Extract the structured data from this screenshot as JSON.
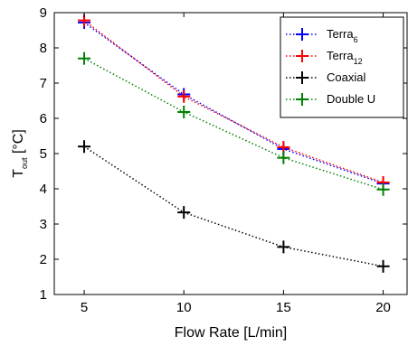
{
  "chart_data": {
    "type": "line",
    "xlabel": "Flow Rate [L/min]",
    "ylabel": {
      "main": "T",
      "sub": "out",
      "rest": " [°C]"
    },
    "x": [
      5,
      10,
      15,
      20
    ],
    "xlim": [
      3.5,
      21.2
    ],
    "ylim": [
      1,
      9
    ],
    "xticks": [
      5,
      10,
      15,
      20
    ],
    "yticks": [
      1,
      2,
      3,
      4,
      5,
      6,
      7,
      8,
      9
    ],
    "grid": false,
    "legend_position": "top-right",
    "series": [
      {
        "label": {
          "main": "Terra",
          "sub": "6"
        },
        "color": "#0000ff",
        "values": [
          8.72,
          6.68,
          5.13,
          4.15
        ]
      },
      {
        "label": {
          "main": "Terra",
          "sub": "12"
        },
        "color": "#ff0000",
        "values": [
          8.78,
          6.62,
          5.18,
          4.18
        ]
      },
      {
        "label": {
          "main": "Coaxial",
          "sub": ""
        },
        "color": "#000000",
        "values": [
          5.2,
          3.33,
          2.35,
          1.8
        ]
      },
      {
        "label": {
          "main": "Double U",
          "sub": ""
        },
        "color": "#008000",
        "values": [
          7.7,
          6.18,
          4.88,
          3.98
        ]
      }
    ]
  }
}
